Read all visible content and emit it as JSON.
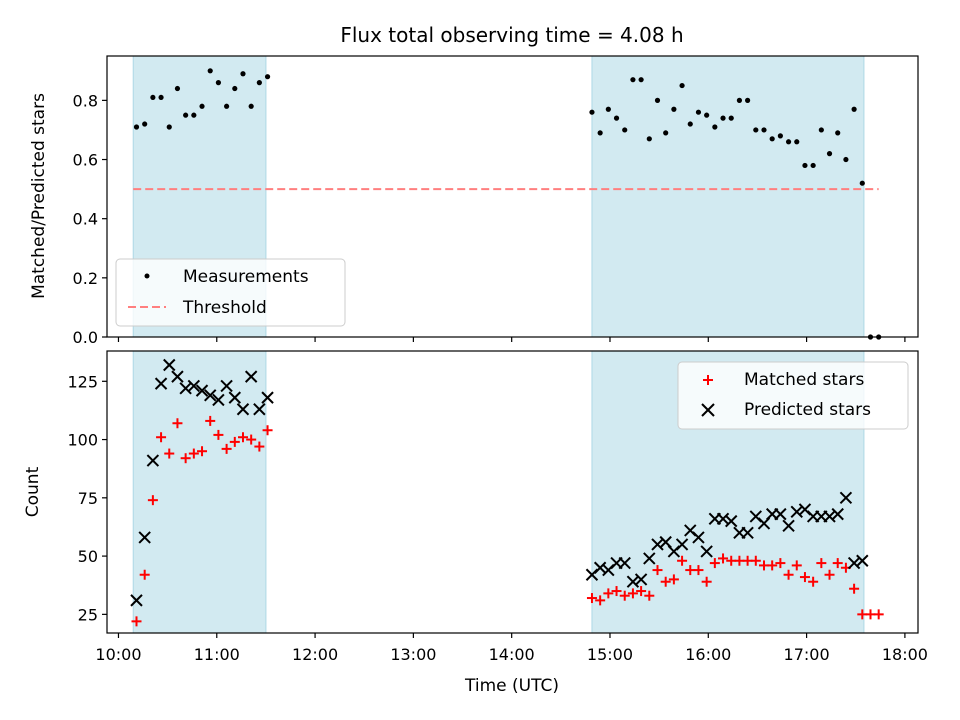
{
  "title": "Flux total observing time = 4.08 h",
  "colors": {
    "band": "#add8e6",
    "threshold": "#ff7f7f",
    "measurement": "#000000",
    "matched": "#ff0000",
    "predicted": "#000000"
  },
  "x_ticks": [
    "10:00",
    "11:00",
    "12:00",
    "13:00",
    "14:00",
    "15:00",
    "16:00",
    "17:00",
    "18:00"
  ],
  "xlabel": "Time (UTC)",
  "chart_data": [
    {
      "type": "scatter",
      "ylabel": "Matched/Predicted stars",
      "xlim": [
        "09:53",
        "18:08"
      ],
      "ylim": [
        0,
        0.95
      ],
      "yticks": [
        "0.0",
        "0.2",
        "0.4",
        "0.6",
        "0.8"
      ],
      "shaded_ranges": [
        [
          "10:09",
          "11:30"
        ],
        [
          "14:49",
          "17:35"
        ]
      ],
      "legend_position": "lower-left",
      "legend": [
        "Measurements",
        "Threshold"
      ],
      "threshold": {
        "name": "Threshold",
        "value": 0.5,
        "x": [
          "10:09",
          "17:44"
        ]
      },
      "series": [
        {
          "name": "Measurements",
          "points": [
            [
              "10:11",
              0.71
            ],
            [
              "10:16",
              0.72
            ],
            [
              "10:21",
              0.81
            ],
            [
              "10:26",
              0.81
            ],
            [
              "10:31",
              0.71
            ],
            [
              "10:36",
              0.84
            ],
            [
              "10:41",
              0.75
            ],
            [
              "10:46",
              0.75
            ],
            [
              "10:51",
              0.78
            ],
            [
              "10:56",
              0.9
            ],
            [
              "11:01",
              0.86
            ],
            [
              "11:06",
              0.78
            ],
            [
              "11:11",
              0.84
            ],
            [
              "11:16",
              0.89
            ],
            [
              "11:21",
              0.78
            ],
            [
              "11:26",
              0.86
            ],
            [
              "11:31",
              0.88
            ],
            [
              "14:49",
              0.76
            ],
            [
              "14:54",
              0.69
            ],
            [
              "14:59",
              0.77
            ],
            [
              "15:04",
              0.74
            ],
            [
              "15:09",
              0.7
            ],
            [
              "15:14",
              0.87
            ],
            [
              "15:19",
              0.87
            ],
            [
              "15:24",
              0.67
            ],
            [
              "15:29",
              0.8
            ],
            [
              "15:34",
              0.69
            ],
            [
              "15:39",
              0.77
            ],
            [
              "15:44",
              0.85
            ],
            [
              "15:49",
              0.72
            ],
            [
              "15:54",
              0.76
            ],
            [
              "15:59",
              0.75
            ],
            [
              "16:04",
              0.71
            ],
            [
              "16:09",
              0.74
            ],
            [
              "16:14",
              0.74
            ],
            [
              "16:19",
              0.8
            ],
            [
              "16:24",
              0.8
            ],
            [
              "16:29",
              0.7
            ],
            [
              "16:34",
              0.7
            ],
            [
              "16:39",
              0.67
            ],
            [
              "16:44",
              0.68
            ],
            [
              "16:49",
              0.66
            ],
            [
              "16:54",
              0.66
            ],
            [
              "16:59",
              0.58
            ],
            [
              "17:04",
              0.58
            ],
            [
              "17:09",
              0.7
            ],
            [
              "17:14",
              0.62
            ],
            [
              "17:19",
              0.69
            ],
            [
              "17:24",
              0.6
            ],
            [
              "17:29",
              0.77
            ],
            [
              "17:34",
              0.52
            ],
            [
              "17:39",
              0.0
            ],
            [
              "17:44",
              0.0
            ]
          ]
        }
      ]
    },
    {
      "type": "scatter",
      "ylabel": "Count",
      "xlabel": "Time (UTC)",
      "xlim": [
        "09:53",
        "18:08"
      ],
      "ylim": [
        17,
        138
      ],
      "yticks": [
        "25",
        "50",
        "75",
        "100",
        "125"
      ],
      "shaded_ranges": [
        [
          "10:09",
          "11:30"
        ],
        [
          "14:49",
          "17:35"
        ]
      ],
      "legend_position": "upper-right",
      "legend": [
        "Matched stars",
        "Predicted stars"
      ],
      "series": [
        {
          "name": "Matched stars",
          "marker": "plus",
          "points": [
            [
              "10:11",
              22
            ],
            [
              "10:16",
              42
            ],
            [
              "10:21",
              74
            ],
            [
              "10:26",
              101
            ],
            [
              "10:31",
              94
            ],
            [
              "10:36",
              107
            ],
            [
              "10:41",
              92
            ],
            [
              "10:46",
              94
            ],
            [
              "10:51",
              95
            ],
            [
              "10:56",
              108
            ],
            [
              "11:01",
              102
            ],
            [
              "11:06",
              96
            ],
            [
              "11:11",
              99
            ],
            [
              "11:16",
              101
            ],
            [
              "11:21",
              100
            ],
            [
              "11:26",
              97
            ],
            [
              "11:31",
              104
            ],
            [
              "14:49",
              32
            ],
            [
              "14:54",
              31
            ],
            [
              "14:59",
              34
            ],
            [
              "15:04",
              35
            ],
            [
              "15:09",
              33
            ],
            [
              "15:14",
              34
            ],
            [
              "15:19",
              35
            ],
            [
              "15:24",
              33
            ],
            [
              "15:29",
              44
            ],
            [
              "15:34",
              39
            ],
            [
              "15:39",
              40
            ],
            [
              "15:44",
              48
            ],
            [
              "15:49",
              44
            ],
            [
              "15:54",
              44
            ],
            [
              "15:59",
              39
            ],
            [
              "16:04",
              47
            ],
            [
              "16:09",
              49
            ],
            [
              "16:14",
              48
            ],
            [
              "16:19",
              48
            ],
            [
              "16:24",
              48
            ],
            [
              "16:29",
              48
            ],
            [
              "16:34",
              46
            ],
            [
              "16:39",
              46
            ],
            [
              "16:44",
              47
            ],
            [
              "16:49",
              42
            ],
            [
              "16:54",
              46
            ],
            [
              "16:59",
              41
            ],
            [
              "17:04",
              39
            ],
            [
              "17:09",
              47
            ],
            [
              "17:14",
              42
            ],
            [
              "17:19",
              47
            ],
            [
              "17:24",
              45
            ],
            [
              "17:29",
              36
            ],
            [
              "17:34",
              25
            ],
            [
              "17:39",
              25
            ],
            [
              "17:44",
              25
            ]
          ]
        },
        {
          "name": "Predicted stars",
          "marker": "x",
          "points": [
            [
              "10:11",
              31
            ],
            [
              "10:16",
              58
            ],
            [
              "10:21",
              91
            ],
            [
              "10:26",
              124
            ],
            [
              "10:31",
              132
            ],
            [
              "10:36",
              127
            ],
            [
              "10:41",
              122
            ],
            [
              "10:46",
              123
            ],
            [
              "10:51",
              121
            ],
            [
              "10:56",
              119
            ],
            [
              "11:01",
              117
            ],
            [
              "11:06",
              123
            ],
            [
              "11:11",
              118
            ],
            [
              "11:16",
              113
            ],
            [
              "11:21",
              127
            ],
            [
              "11:26",
              113
            ],
            [
              "11:31",
              118
            ],
            [
              "14:49",
              42
            ],
            [
              "14:54",
              45
            ],
            [
              "14:59",
              44
            ],
            [
              "15:04",
              47
            ],
            [
              "15:09",
              47
            ],
            [
              "15:14",
              39
            ],
            [
              "15:19",
              40
            ],
            [
              "15:24",
              49
            ],
            [
              "15:29",
              55
            ],
            [
              "15:34",
              56
            ],
            [
              "15:39",
              52
            ],
            [
              "15:44",
              55
            ],
            [
              "15:49",
              61
            ],
            [
              "15:54",
              58
            ],
            [
              "15:59",
              52
            ],
            [
              "16:04",
              66
            ],
            [
              "16:09",
              66
            ],
            [
              "16:14",
              65
            ],
            [
              "16:19",
              60
            ],
            [
              "16:24",
              60
            ],
            [
              "16:29",
              67
            ],
            [
              "16:34",
              64
            ],
            [
              "16:39",
              68
            ],
            [
              "16:44",
              68
            ],
            [
              "16:49",
              63
            ],
            [
              "16:54",
              69
            ],
            [
              "16:59",
              70
            ],
            [
              "17:04",
              67
            ],
            [
              "17:09",
              67
            ],
            [
              "17:14",
              67
            ],
            [
              "17:19",
              68
            ],
            [
              "17:24",
              75
            ],
            [
              "17:29",
              47
            ],
            [
              "17:34",
              48
            ]
          ]
        }
      ]
    }
  ]
}
